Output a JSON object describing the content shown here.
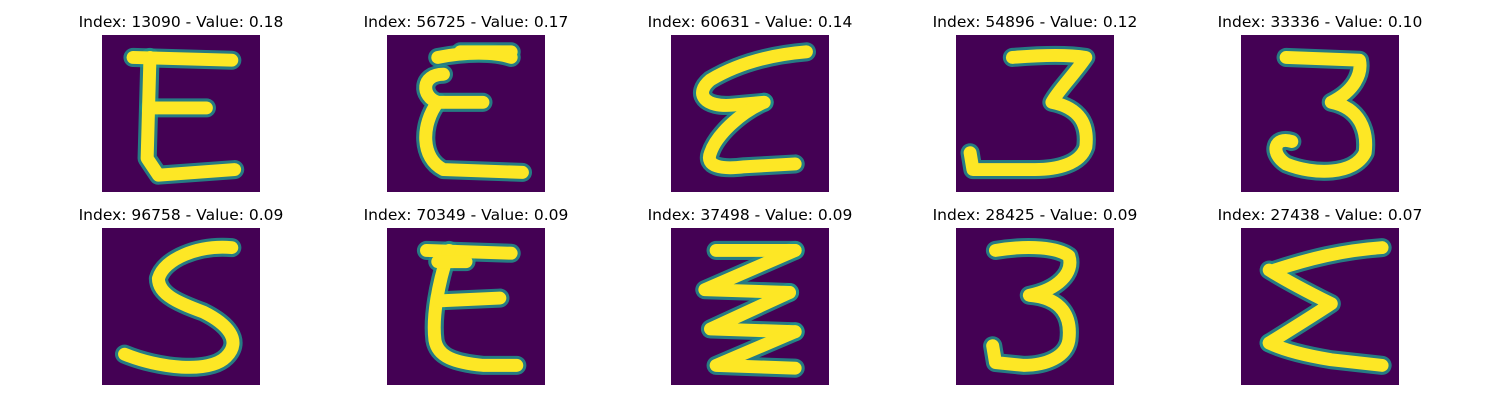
{
  "colors": {
    "background": "#440154",
    "mid": "#21918c",
    "stroke": "#fde725"
  },
  "panels": [
    {
      "title": "Index: 13090 - Value: 0.18",
      "image": "handwritten-E"
    },
    {
      "title": "Index: 56725 - Value: 0.17",
      "image": "handwritten-E"
    },
    {
      "title": "Index: 60631 - Value: 0.14",
      "image": "handwritten-slanted-E"
    },
    {
      "title": "Index: 54896 - Value: 0.12",
      "image": "handwritten-3"
    },
    {
      "title": "Index: 33336 - Value: 0.10",
      "image": "handwritten-3"
    },
    {
      "title": "Index: 96758 - Value: 0.09",
      "image": "handwritten-S"
    },
    {
      "title": "Index: 70349 - Value: 0.09",
      "image": "handwritten-E"
    },
    {
      "title": "Index: 37498 - Value: 0.09",
      "image": "handwritten-zigzag-E"
    },
    {
      "title": "Index: 28425 - Value: 0.09",
      "image": "handwritten-3"
    },
    {
      "title": "Index: 27438 - Value: 0.07",
      "image": "handwritten-sigma"
    }
  ]
}
